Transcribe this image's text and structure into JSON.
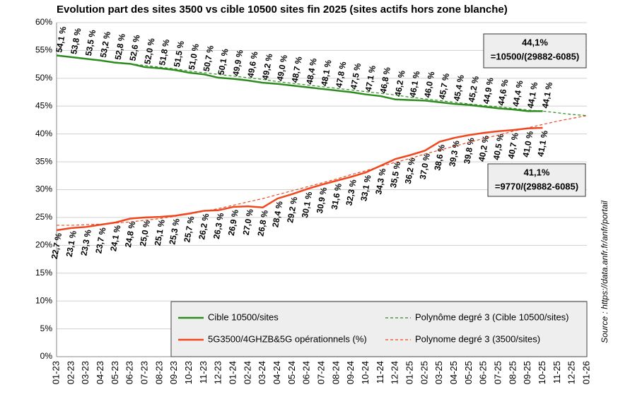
{
  "chart_data": {
    "type": "line",
    "title": "Evolution part des sites 3500 vs cible 10500 sites fin 2025 (sites actifs hors zone blanche)",
    "categories": [
      "01-23",
      "02-23",
      "03-23",
      "04-23",
      "05-23",
      "06-23",
      "07-23",
      "08-23",
      "09-23",
      "10-23",
      "11-23",
      "12-23",
      "01-24",
      "02-24",
      "03-24",
      "04-24",
      "05-24",
      "06-24",
      "07-24",
      "08-24",
      "09-24",
      "10-24",
      "11-24",
      "12-24",
      "01-25",
      "02-25",
      "03-25",
      "04-25",
      "05-25",
      "06-25",
      "07-25",
      "08-25",
      "09-25",
      "10-25",
      "11-25",
      "12-25",
      "01-26"
    ],
    "ylim": [
      0,
      60
    ],
    "yticks": [
      {
        "value": 0,
        "label": "0%"
      },
      {
        "value": 5,
        "label": "5%"
      },
      {
        "value": 10,
        "label": "10%"
      },
      {
        "value": 15,
        "label": "15%"
      },
      {
        "value": 20,
        "label": "20%"
      },
      {
        "value": 25,
        "label": "25%"
      },
      {
        "value": 30,
        "label": "30%"
      },
      {
        "value": 35,
        "label": "35%"
      },
      {
        "value": 40,
        "label": "40%"
      },
      {
        "value": 45,
        "label": "45%"
      },
      {
        "value": 50,
        "label": "50%"
      },
      {
        "value": 55,
        "label": "55%"
      },
      {
        "value": 60,
        "label": "60%"
      }
    ],
    "grid": true,
    "series": [
      {
        "name": "Cible 10500/sites",
        "color": "#2e8b1f",
        "dashed": false,
        "values": [
          54.1,
          53.8,
          53.5,
          53.2,
          52.8,
          52.6,
          52.0,
          51.8,
          51.5,
          51.0,
          50.7,
          50.1,
          49.9,
          49.6,
          49.2,
          49.0,
          48.7,
          48.4,
          48.1,
          47.8,
          47.5,
          47.1,
          46.8,
          46.2,
          46.1,
          46.0,
          45.7,
          45.4,
          45.2,
          44.9,
          44.6,
          44.4,
          44.1,
          44.1,
          null,
          null,
          null
        ],
        "value_labels": [
          "54,1 %",
          "53,8 %",
          "53,5 %",
          "53,2 %",
          "52,8 %",
          "52,6 %",
          "52,0 %",
          "51,8 %",
          "51,5 %",
          "51,0 %",
          "50,7 %",
          "50,1 %",
          "49,9 %",
          "49,6 %",
          "49,2 %",
          "49,0 %",
          "48,7 %",
          "48,4 %",
          "48,1 %",
          "47,8 %",
          "47,5 %",
          "47,1 %",
          "46,8 %",
          "46,2 %",
          "46,1 %",
          "46,0 %",
          "45,7 %",
          "45,4 %",
          "45,2 %",
          "44,9 %",
          "44,6 %",
          "44,4 %",
          "44,1 %",
          "44,1 %",
          null,
          null,
          null
        ]
      },
      {
        "name": "5G3500/4GHZB&5G opérationnels (%)",
        "color": "#f0471e",
        "dashed": false,
        "values": [
          22.7,
          23.1,
          23.3,
          23.7,
          24.1,
          24.8,
          25.0,
          25.1,
          25.3,
          25.7,
          26.2,
          26.3,
          26.9,
          27.0,
          26.8,
          28.4,
          29.2,
          30.1,
          30.9,
          31.6,
          32.3,
          33.1,
          34.3,
          35.5,
          36.2,
          37.0,
          38.6,
          39.3,
          39.8,
          40.2,
          40.5,
          40.7,
          41.0,
          41.1,
          null,
          null,
          null
        ],
        "value_labels": [
          "22,7 %",
          "23,1 %",
          "23,3 %",
          "23,7 %",
          "24,1 %",
          "24,8 %",
          "25,0 %",
          "25,1 %",
          "25,3 %",
          "25,7 %",
          "26,2 %",
          "26,3 %",
          "26,9 %",
          "27,0 %",
          "26,8 %",
          "28,4 %",
          "29,2 %",
          "30,1 %",
          "30,9 %",
          "31,6 %",
          "32,3 %",
          "33,1 %",
          "34,3 %",
          "35,5 %",
          "36,2 %",
          "37,0 %",
          "38,6 %",
          "39,3 %",
          "39,8 %",
          "40,2 %",
          "40,5 %",
          "40,7 %",
          "41,0 %",
          "41,1 %",
          null,
          null,
          null
        ]
      },
      {
        "name": "Polynôme degré 3 (Cible 10500/sites)",
        "color": "#2e8b1f",
        "dashed": true,
        "values": [
          54.1,
          53.8,
          53.5,
          53.2,
          52.9,
          52.6,
          52.3,
          52.0,
          51.7,
          51.3,
          51.0,
          50.7,
          50.4,
          50.1,
          49.8,
          49.4,
          49.1,
          48.8,
          48.5,
          48.2,
          47.9,
          47.6,
          47.3,
          47.0,
          46.6,
          46.3,
          46.0,
          45.7,
          45.4,
          45.1,
          44.9,
          44.6,
          44.3,
          44.1,
          43.8,
          43.5,
          43.3
        ]
      },
      {
        "name": "Polynome degré 3 (3500/sites)",
        "color": "#f0471e",
        "dashed": true,
        "values": [
          23.6,
          23.6,
          23.7,
          23.8,
          24.0,
          24.2,
          24.5,
          24.8,
          25.2,
          25.6,
          26.1,
          26.6,
          27.2,
          27.8,
          28.4,
          29.1,
          29.8,
          30.5,
          31.2,
          31.9,
          32.7,
          33.4,
          34.2,
          34.9,
          35.6,
          36.4,
          37.1,
          37.8,
          38.5,
          39.2,
          39.8,
          40.5,
          41.1,
          41.7,
          42.3,
          42.8,
          43.3
        ]
      }
    ],
    "annotations": [
      {
        "lines": [
          "44,1%",
          "=10500/(29882-6085)"
        ],
        "color": "#2e8b1f"
      },
      {
        "lines": [
          "41,1%",
          "=9770/(29882-6085)"
        ],
        "color": "#e8100a"
      }
    ],
    "source": "Source : https://data.anfr.fr/anfr/portail"
  }
}
